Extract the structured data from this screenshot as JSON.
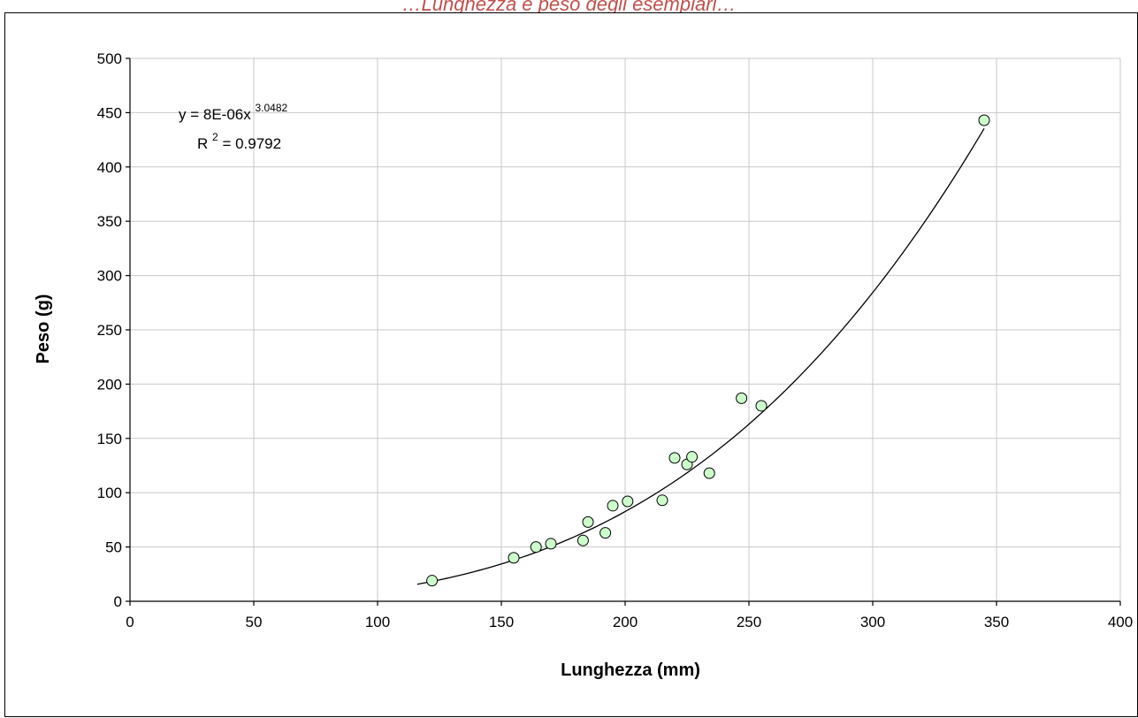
{
  "caption": {
    "text": "…Lunghezza e peso degli esemplari…",
    "color": "#c0504d"
  },
  "chart_data": {
    "type": "scatter",
    "title": "",
    "xlabel": "Lunghezza (mm)",
    "ylabel": "Peso (g)",
    "xlim": [
      0,
      400
    ],
    "ylim": [
      0,
      500
    ],
    "xticks": [
      0,
      50,
      100,
      150,
      200,
      250,
      300,
      350,
      400
    ],
    "yticks": [
      0,
      50,
      100,
      150,
      200,
      250,
      300,
      350,
      400,
      450,
      500
    ],
    "grid": true,
    "legend": "none",
    "marker_color": "#ccffcc",
    "marker_edge": "#000000",
    "points": [
      {
        "x": 122,
        "y": 19
      },
      {
        "x": 155,
        "y": 40
      },
      {
        "x": 164,
        "y": 50
      },
      {
        "x": 170,
        "y": 53
      },
      {
        "x": 183,
        "y": 56
      },
      {
        "x": 185,
        "y": 73
      },
      {
        "x": 192,
        "y": 63
      },
      {
        "x": 195,
        "y": 88
      },
      {
        "x": 201,
        "y": 92
      },
      {
        "x": 215,
        "y": 93
      },
      {
        "x": 220,
        "y": 132
      },
      {
        "x": 225,
        "y": 126
      },
      {
        "x": 227,
        "y": 133
      },
      {
        "x": 234,
        "y": 118
      },
      {
        "x": 247,
        "y": 187
      },
      {
        "x": 255,
        "y": 180
      },
      {
        "x": 345,
        "y": 443
      }
    ],
    "trendline": {
      "type": "power",
      "coefficient": 8e-06,
      "exponent": 3.0482,
      "x_range": [
        116,
        345
      ],
      "equation_main": "y = 8E-06x",
      "equation_exponent": "3.0482",
      "r2_label_main": "R",
      "r2_label_sup": "2",
      "r2_value_text": " = 0.9792"
    }
  }
}
